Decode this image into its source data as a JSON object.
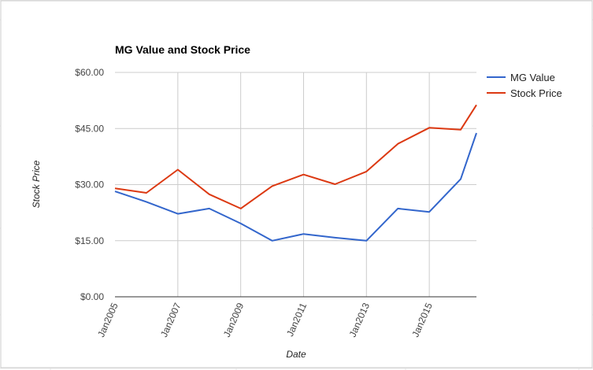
{
  "chart_data": {
    "type": "line",
    "title": "MG Value and Stock Price",
    "xlabel": "Date",
    "ylabel": "Stock Price",
    "ylim": [
      0,
      60
    ],
    "yticks": [
      "$0.00",
      "$15.00",
      "$30.00",
      "$45.00",
      "$60.00"
    ],
    "xlim": [
      2005.0,
      2016.5
    ],
    "xticks": [
      {
        "label": "Jan2005",
        "value": 2005
      },
      {
        "label": "Jan2007",
        "value": 2007
      },
      {
        "label": "Jan2009",
        "value": 2009
      },
      {
        "label": "Jan2011",
        "value": 2011
      },
      {
        "label": "Jan2013",
        "value": 2013
      },
      {
        "label": "Jan2015",
        "value": 2015
      }
    ],
    "grid": true,
    "legend_position": "right",
    "x": [
      2005,
      2006,
      2007,
      2008,
      2009,
      2010,
      2011,
      2012,
      2013,
      2014,
      2015,
      2016,
      2016.5
    ],
    "series": [
      {
        "name": "MG Value",
        "color": "#3366cc",
        "values": [
          28.2,
          25.4,
          22.2,
          23.6,
          19.6,
          15.0,
          16.8,
          15.8,
          15.0,
          23.6,
          22.7,
          31.5,
          43.8
        ]
      },
      {
        "name": "Stock Price",
        "color": "#dc3912",
        "values": [
          29.0,
          27.8,
          34.0,
          27.4,
          23.6,
          29.6,
          32.7,
          30.1,
          33.5,
          40.9,
          45.2,
          44.7,
          51.3
        ]
      }
    ]
  }
}
